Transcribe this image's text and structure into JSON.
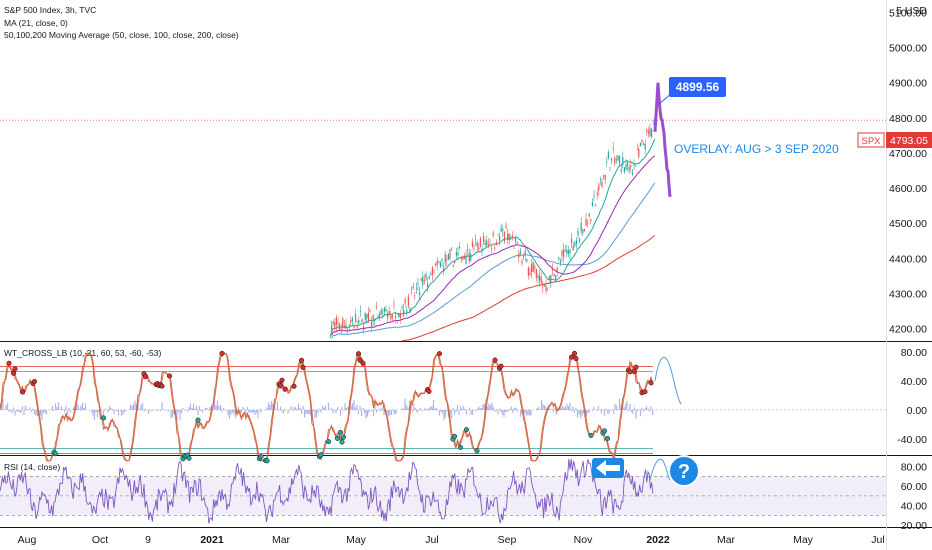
{
  "header": {
    "symbol_line": "S&P 500 Index, 3h, TVC",
    "ma_line": "MA (21, close, 0)",
    "ma3_line": "50,100,200 Moving Average (50, close, 100, close, 200, close)"
  },
  "colors": {
    "up": "#26a69a",
    "down": "#ef5350",
    "ma21": "#26a69a",
    "ma50": "#9c27b0",
    "ma100": "#5b9bd5",
    "ma200": "#e53935",
    "overlay": "#9c4dcc",
    "callout": "#2962ff",
    "annotation_text": "#1e88e5",
    "wt_line": "#b87333",
    "rsi_line": "#7e57c2",
    "price_badge": "#e53935"
  },
  "price_axis": {
    "unit": "USD",
    "currency_label": "5 USD",
    "ticks": [
      "5100.00",
      "5000.00",
      "4900.00",
      "4800.00",
      "4700.00",
      "4600.00",
      "4500.00",
      "4400.00",
      "4300.00",
      "4200.00"
    ],
    "range": [
      4165,
      5135
    ],
    "last_price": 4793.05,
    "last_price_label": "4793.05",
    "symbol_badge": "SPX"
  },
  "callout": {
    "value_label": "4899.56",
    "value": 4899.56,
    "overlay_annotation": "OVERLAY: AUG > 3 SEP 2020"
  },
  "wt_panel": {
    "title": "WT_CROSS_LB (10, 21, 60, 53, -60, -53)",
    "ticks": [
      "80.00",
      "40.00",
      "0.00",
      "-40.00"
    ],
    "upper_levels": [
      60,
      53
    ],
    "lower_levels": [
      -60,
      -53
    ]
  },
  "rsi_panel": {
    "title": "RSI (14, close)",
    "ticks": [
      "80.00",
      "60.00",
      "40.00",
      "20.00"
    ],
    "band": [
      30,
      70
    ],
    "middle": 50,
    "question_icon": "question-circle-icon",
    "arrow_icon": "arrow-left-icon",
    "question_glyph": "?"
  },
  "time_axis": {
    "labels": [
      "Aug",
      "Oct",
      "9",
      "2021",
      "Mar",
      "May",
      "Jul",
      "Sep",
      "Nov",
      "2022",
      "Mar",
      "May",
      "Jul"
    ],
    "bold": [
      "2021",
      "2022"
    ]
  },
  "chart_data": {
    "type": "candlestick",
    "title": "S&P 500 Index, 3h, TVC",
    "x_range": [
      "2020-07",
      "2022-07"
    ],
    "y_range": [
      4165,
      5135
    ],
    "series": [
      {
        "name": "S&P 500 Index",
        "x": [
          "2021-05",
          "2021-06",
          "2021-07",
          "2021-08",
          "2021-09",
          "2021-10",
          "2021-11",
          "2021-12",
          "2022-01"
        ],
        "values": [
          4200,
          4250,
          4380,
          4470,
          4320,
          4520,
          4690,
          4650,
          4780
        ]
      },
      {
        "name": "Overlay",
        "x": [
          "2022-01-01",
          "2022-01-04",
          "2022-01-08"
        ],
        "values": [
          4899.56,
          4700,
          4620
        ]
      }
    ],
    "annotations": [
      "4899.56",
      "OVERLAY: AUG > 3 SEP 2020"
    ]
  }
}
